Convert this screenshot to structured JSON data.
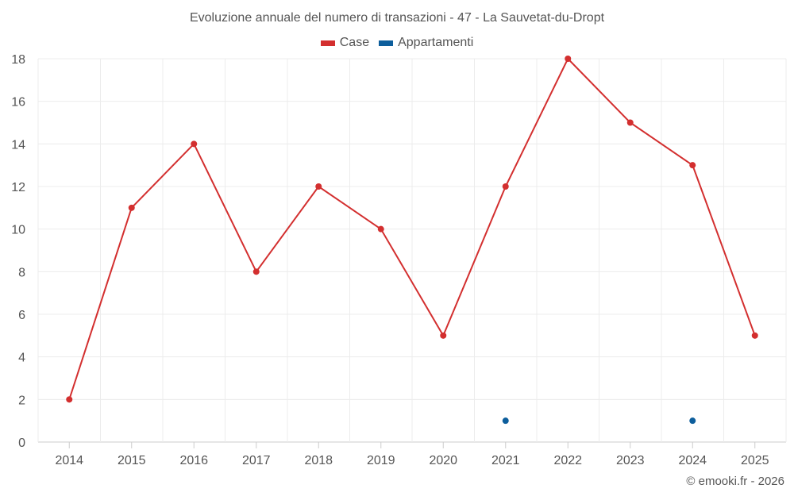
{
  "chart_data": {
    "type": "line",
    "title": "Evoluzione annuale del numero di transazioni - 47 - La Sauvetat-du-Dropt",
    "x": [
      "2014",
      "2015",
      "2016",
      "2017",
      "2018",
      "2019",
      "2020",
      "2021",
      "2022",
      "2023",
      "2024",
      "2025"
    ],
    "series": [
      {
        "name": "Case",
        "color": "#d32f2f",
        "values": [
          2,
          11,
          14,
          8,
          12,
          10,
          5,
          12,
          18,
          15,
          13,
          5
        ]
      },
      {
        "name": "Appartamenti",
        "color": "#0d5e9c",
        "values": [
          null,
          null,
          null,
          null,
          null,
          null,
          null,
          1,
          null,
          null,
          1,
          null
        ]
      }
    ],
    "ylim": [
      0,
      18
    ],
    "yticks": [
      "0",
      "2",
      "4",
      "6",
      "8",
      "10",
      "12",
      "14",
      "16",
      "18"
    ],
    "grid": true,
    "legend_position": "top-center"
  },
  "credit": "© emooki.fr - 2026"
}
